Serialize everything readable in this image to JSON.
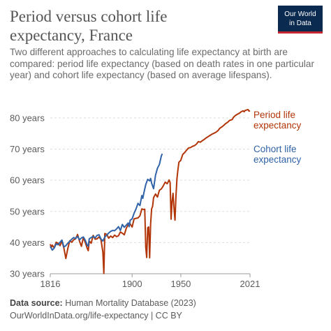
{
  "header": {
    "title_line1": "Period versus cohort life",
    "title_line2": "expectancy, France",
    "subtitle": "Two different approaches to calculating life expectancy at birth are compared: period life expectancy (based on death rates in one particular year) and cohort life expectancy (based on average lifespans).",
    "logo_line1": "Our World",
    "logo_line2": "in Data"
  },
  "footer": {
    "source_label": "Data source:",
    "source_text": "Human Mortality Database (2023)",
    "url": "OurWorldInData.org/life-expectancy | CC BY"
  },
  "colors": {
    "period": "#b13507",
    "cohort": "#3063a7"
  },
  "chart_data": {
    "type": "line",
    "title": "Period versus cohort life expectancy, France",
    "ylim": [
      30,
      82
    ],
    "xlim": [
      1816,
      2021
    ],
    "y_ticks": [
      30,
      40,
      50,
      60,
      70,
      80
    ],
    "y_tick_labels": [
      "30 years",
      "40 years",
      "50 years",
      "60 years",
      "70 years",
      "80 years"
    ],
    "x_ticks": [
      1816,
      1900,
      1950,
      2021
    ],
    "x_tick_labels": [
      "1816",
      "1900",
      "1950",
      "2021"
    ],
    "grid": true,
    "legend": "inline-right",
    "series": [
      {
        "name": "Period life expectancy",
        "label_lines": [
          "Period life",
          "expectancy"
        ],
        "color": "#b13507",
        "x": [
          1816,
          1817,
          1818,
          1820,
          1822,
          1824,
          1826,
          1828,
          1830,
          1832,
          1834,
          1836,
          1838,
          1840,
          1842,
          1844,
          1846,
          1848,
          1850,
          1852,
          1854,
          1855,
          1856,
          1858,
          1860,
          1862,
          1864,
          1866,
          1868,
          1870,
          1871,
          1872,
          1874,
          1876,
          1878,
          1880,
          1882,
          1884,
          1886,
          1888,
          1890,
          1892,
          1894,
          1896,
          1898,
          1900,
          1902,
          1904,
          1906,
          1908,
          1910,
          1912,
          1913,
          1914,
          1915,
          1916,
          1917,
          1918,
          1919,
          1920,
          1921,
          1922,
          1924,
          1926,
          1928,
          1930,
          1932,
          1934,
          1936,
          1938,
          1939,
          1940,
          1941,
          1942,
          1943,
          1944,
          1945,
          1946,
          1947,
          1948,
          1950,
          1952,
          1954,
          1956,
          1958,
          1960,
          1962,
          1964,
          1966,
          1968,
          1970,
          1972,
          1974,
          1976,
          1978,
          1980,
          1982,
          1984,
          1986,
          1988,
          1990,
          1992,
          1994,
          1996,
          1998,
          2000,
          2002,
          2003,
          2004,
          2006,
          2008,
          2010,
          2012,
          2014,
          2015,
          2016,
          2018,
          2019,
          2020,
          2021
        ],
        "y": [
          39.5,
          38.4,
          39.2,
          38.3,
          40.1,
          39.8,
          39.0,
          40.5,
          38.2,
          34.9,
          38.1,
          40.6,
          40.1,
          40.9,
          41.2,
          42.6,
          40.4,
          38.8,
          41.6,
          40.0,
          38.1,
          37.4,
          40.5,
          39.8,
          42.3,
          41.1,
          41.2,
          41.8,
          41.0,
          37.0,
          30.1,
          42.9,
          42.6,
          41.4,
          42.1,
          41.6,
          42.4,
          41.9,
          42.2,
          43.4,
          43.0,
          42.5,
          44.6,
          45.7,
          46.0,
          45.0,
          47.6,
          47.8,
          47.9,
          48.6,
          50.8,
          50.6,
          50.7,
          38.5,
          35.2,
          44.8,
          45.0,
          35.1,
          46.0,
          50.8,
          51.6,
          54.4,
          55.6,
          54.6,
          56.8,
          57.2,
          58.2,
          59.4,
          58.9,
          60.1,
          59.3,
          47.5,
          53.2,
          55.8,
          51.0,
          47.2,
          55.0,
          60.5,
          63.4,
          65.8,
          66.4,
          68.3,
          68.9,
          69.7,
          70.4,
          70.5,
          70.9,
          71.1,
          71.6,
          72.4,
          72.2,
          72.7,
          73.1,
          73.6,
          74.0,
          74.4,
          74.8,
          75.1,
          75.4,
          75.9,
          76.7,
          77.1,
          77.6,
          78.2,
          78.6,
          79.2,
          79.4,
          79.6,
          80.2,
          80.8,
          81.2,
          81.5,
          82.0,
          82.3,
          82.0,
          82.4,
          82.6,
          82.7,
          82.2,
          82.3
        ]
      },
      {
        "name": "Cohort life expectancy",
        "label_lines": [
          "Cohort life",
          "expectancy"
        ],
        "color": "#3063a7",
        "x": [
          1816,
          1818,
          1820,
          1822,
          1824,
          1826,
          1828,
          1830,
          1832,
          1834,
          1836,
          1838,
          1840,
          1842,
          1844,
          1846,
          1848,
          1850,
          1852,
          1854,
          1855,
          1856,
          1858,
          1860,
          1862,
          1864,
          1866,
          1868,
          1870,
          1872,
          1874,
          1876,
          1878,
          1880,
          1882,
          1884,
          1886,
          1888,
          1890,
          1892,
          1894,
          1896,
          1897,
          1898,
          1900,
          1902,
          1904,
          1906,
          1908,
          1910,
          1911,
          1912,
          1914,
          1916,
          1918,
          1919,
          1920,
          1922,
          1924,
          1926,
          1928,
          1930,
          1931
        ],
        "y": [
          38.8,
          37.6,
          38.2,
          39.6,
          39.3,
          40.1,
          40.8,
          38.6,
          39.0,
          39.8,
          40.4,
          41.1,
          41.6,
          41.3,
          42.0,
          40.9,
          41.5,
          41.8,
          40.7,
          39.1,
          38.9,
          41.2,
          41.6,
          42.0,
          41.5,
          42.3,
          42.5,
          41.2,
          40.5,
          41.8,
          42.4,
          43.1,
          43.6,
          43.9,
          43.8,
          44.4,
          45.1,
          43.9,
          45.8,
          44.9,
          45.6,
          46.3,
          45.1,
          47.2,
          47.6,
          49.4,
          50.8,
          52.6,
          51.9,
          55.1,
          54.2,
          55.8,
          58.6,
          60.3,
          59.8,
          60.6,
          59.1,
          57.3,
          61.6,
          63.9,
          65.1,
          67.8,
          68.5
        ]
      }
    ]
  }
}
